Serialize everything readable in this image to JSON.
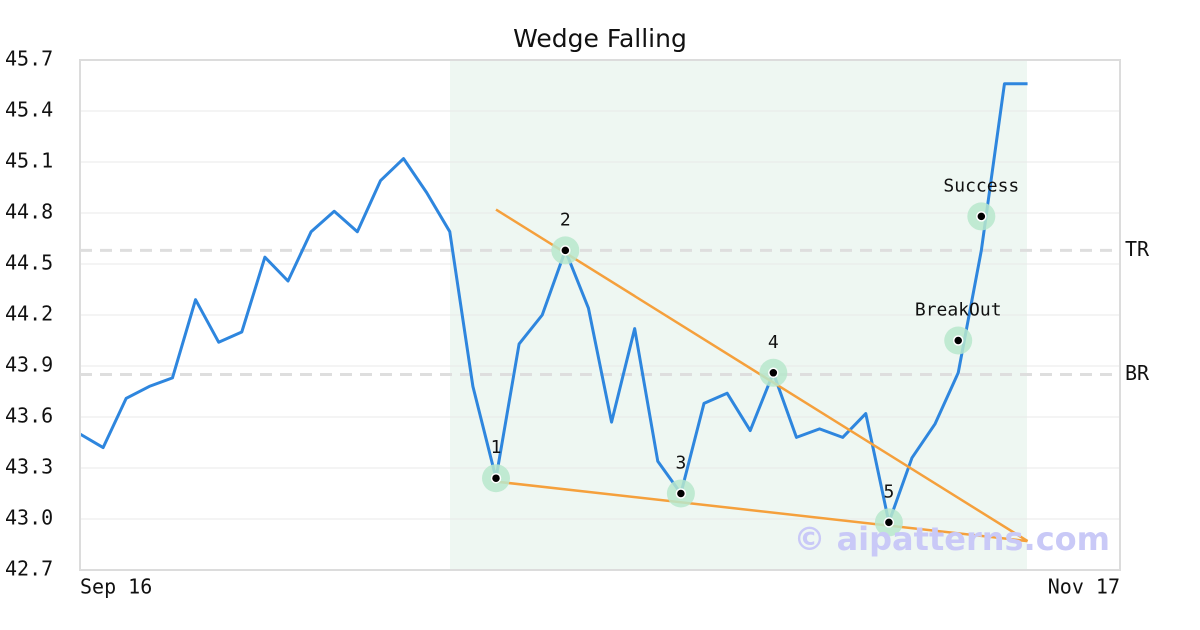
{
  "chart_data": {
    "type": "line",
    "title": "Wedge Falling",
    "categories": [
      "Sep 16",
      null,
      null,
      null,
      null,
      null,
      null,
      null,
      null,
      null,
      null,
      null,
      null,
      null,
      null,
      null,
      null,
      null,
      null,
      null,
      null,
      null,
      null,
      null,
      null,
      null,
      null,
      null,
      null,
      null,
      null,
      null,
      null,
      null,
      null,
      null,
      null,
      null,
      null,
      null,
      null,
      null,
      null,
      null,
      null,
      "Nov 17"
    ],
    "series": [
      {
        "color": "#2e86de",
        "values": [
          43.5,
          43.42,
          43.71,
          43.78,
          43.83,
          44.29,
          44.04,
          44.1,
          44.54,
          44.4,
          44.69,
          44.81,
          44.69,
          44.99,
          45.12,
          44.92,
          44.69,
          43.78,
          43.24,
          44.03,
          44.2,
          44.58,
          44.24,
          43.57,
          44.12,
          43.34,
          43.15,
          43.68,
          43.74,
          43.52,
          43.86,
          43.48,
          43.53,
          43.48,
          43.62,
          42.98,
          43.36,
          43.56,
          43.86,
          44.58,
          45.56,
          45.56,
          null,
          null,
          null,
          null
        ]
      }
    ],
    "ylim": [
      42.7,
      45.7
    ],
    "yticks": [
      42.7,
      {
        "value": 43,
        "label": "43.0"
      },
      43.3,
      43.6,
      43.9,
      44.2,
      44.5,
      44.8,
      45.1,
      45.4,
      45.7
    ],
    "grid": true,
    "trendlines": [
      {
        "color": "#f5a03c",
        "points": [
          [
            18,
            44.82
          ],
          [
            41,
            42.87
          ]
        ]
      },
      {
        "color": "#f5a03c",
        "points": [
          [
            18,
            43.22
          ],
          [
            41,
            42.87
          ]
        ]
      }
    ],
    "hlines": [
      {
        "label": "TR",
        "value": 44.58
      },
      {
        "label": "BR",
        "value": 43.85
      }
    ],
    "annotations": [
      {
        "label": "1",
        "category_index": 18,
        "value": 43.24
      },
      {
        "label": "2",
        "category_index": 21,
        "value": 44.58
      },
      {
        "label": "3",
        "category_index": 26,
        "value": 43.15
      },
      {
        "label": "4",
        "category_index": 30,
        "value": 43.86
      },
      {
        "label": "5",
        "category_index": 35,
        "value": 42.98
      },
      {
        "label": "BreakOut",
        "category_index": 38,
        "value": 44.05
      },
      {
        "label": "Success",
        "category_index": 39,
        "value": 44.78
      }
    ],
    "watermark": "© aipatterns.com"
  }
}
